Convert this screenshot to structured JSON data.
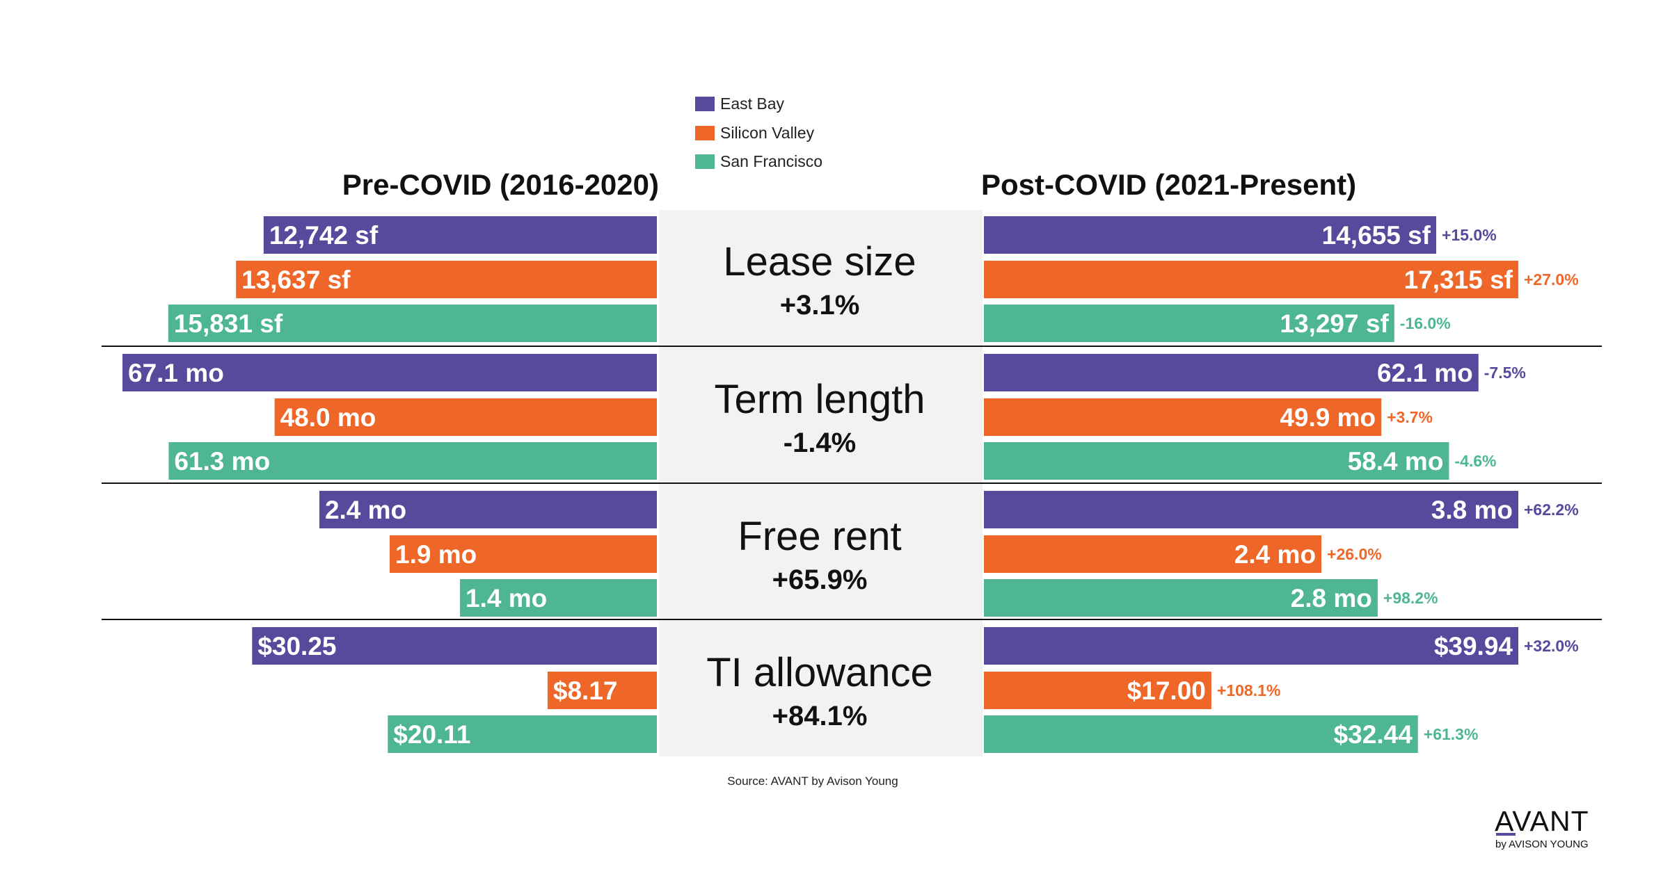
{
  "chart_data": {
    "type": "bar",
    "orientation": "horizontal",
    "layout": "butterfly",
    "left_panel_title": "Pre-COVID (2016-2020)",
    "right_panel_title": "Post-COVID (2021-Present)",
    "legend": {
      "placement": "top-center",
      "entries": [
        {
          "name": "East Bay",
          "color": "#564a9c"
        },
        {
          "name": "Silicon Valley",
          "color": "#ef6728"
        },
        {
          "name": "San Francisco",
          "color": "#4fb695"
        }
      ]
    },
    "metrics": [
      {
        "name": "Lease size",
        "change": "+3.1%",
        "pre": [
          {
            "value": 12742,
            "label": "12,742 sf"
          },
          {
            "value": 13637,
            "label": "13,637 sf"
          },
          {
            "value": 15831,
            "label": "15,831 sf"
          }
        ],
        "post": [
          {
            "value": 14655,
            "label": "14,655 sf",
            "pct": "+15.0%"
          },
          {
            "value": 17315,
            "label": "17,315 sf",
            "pct": "+27.0%"
          },
          {
            "value": 13297,
            "label": "13,297 sf",
            "pct": "-16.0%"
          }
        ]
      },
      {
        "name": "Term length",
        "change": "-1.4%",
        "pre": [
          {
            "value": 67.1,
            "label": "67.1 mo"
          },
          {
            "value": 48.0,
            "label": "48.0 mo"
          },
          {
            "value": 61.3,
            "label": "61.3 mo"
          }
        ],
        "post": [
          {
            "value": 62.1,
            "label": "62.1 mo",
            "pct": "-7.5%"
          },
          {
            "value": 49.9,
            "label": "49.9 mo",
            "pct": "+3.7%"
          },
          {
            "value": 58.4,
            "label": "58.4 mo",
            "pct": "-4.6%"
          }
        ]
      },
      {
        "name": "Free rent",
        "change": "+65.9%",
        "pre": [
          {
            "value": 2.4,
            "label": "2.4 mo"
          },
          {
            "value": 1.9,
            "label": "1.9 mo"
          },
          {
            "value": 1.4,
            "label": "1.4 mo"
          }
        ],
        "post": [
          {
            "value": 3.8,
            "label": "3.8 mo",
            "pct": "+62.2%"
          },
          {
            "value": 2.4,
            "label": "2.4 mo",
            "pct": "+26.0%"
          },
          {
            "value": 2.8,
            "label": "2.8 mo",
            "pct": "+98.2%"
          }
        ]
      },
      {
        "name": "TI allowance",
        "change": "+84.1%",
        "pre": [
          {
            "value": 30.25,
            "label": "$30.25"
          },
          {
            "value": 8.17,
            "label": "$8.17"
          },
          {
            "value": 20.11,
            "label": "$20.11"
          }
        ],
        "post": [
          {
            "value": 39.94,
            "label": "$39.94",
            "pct": "+32.0%"
          },
          {
            "value": 17.0,
            "label": "$17.00",
            "pct": "+108.1%"
          },
          {
            "value": 32.44,
            "label": "$32.44",
            "pct": "+61.3%"
          }
        ]
      }
    ]
  },
  "source": "Source: AVANT by Avison Young",
  "logo": {
    "main": "AVANT",
    "sub": "by AVISON YOUNG",
    "accent_color": "#564a9c"
  }
}
